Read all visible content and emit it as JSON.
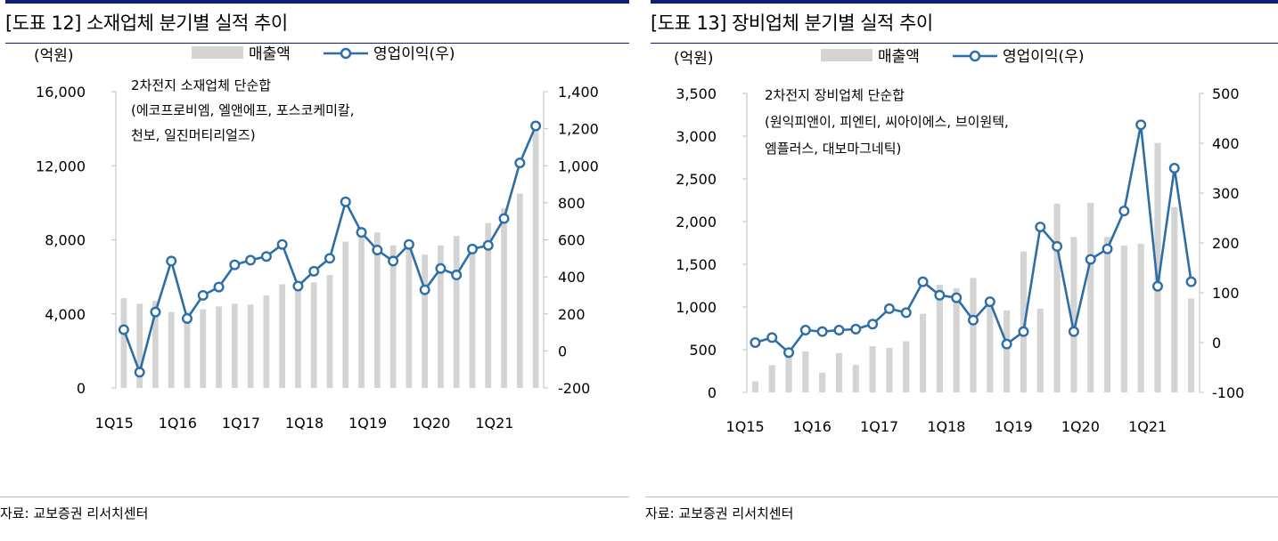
{
  "source_label": "자료: 교보증권 리서치센터",
  "colors": {
    "title_bar": "#0d1e73",
    "bar": "#d4d4d4",
    "line": "#2e6ea6",
    "marker_fill": "#ffffff"
  },
  "chart_data": [
    {
      "type": "bar+line",
      "title": "[도표 12] 소재업체 분기별 실적 추이",
      "unit_label": "(억원)",
      "note": [
        "2차전지 소재업체 단순합",
        "(에코프로비엠, 엘앤에프, 포스코케미칼,",
        "천보, 일진머티리얼즈)"
      ],
      "categories": [
        "1Q15",
        "2Q15",
        "3Q15",
        "4Q15",
        "1Q16",
        "2Q16",
        "3Q16",
        "4Q16",
        "1Q17",
        "2Q17",
        "3Q17",
        "4Q17",
        "1Q18",
        "2Q18",
        "3Q18",
        "4Q18",
        "1Q19",
        "2Q19",
        "3Q19",
        "4Q19",
        "1Q20",
        "2Q20",
        "3Q20",
        "4Q20",
        "1Q21",
        "2Q21",
        "3Q21"
      ],
      "x_tick_labels": [
        "1Q15",
        "1Q16",
        "1Q17",
        "1Q18",
        "1Q19",
        "1Q20",
        "1Q21"
      ],
      "y_left": {
        "ticks": [
          "16,000",
          "12,000",
          "8,000",
          "4,000",
          "0"
        ],
        "ylim": [
          0,
          16000
        ]
      },
      "y_right": {
        "ticks": [
          "1,400",
          "1,200",
          "1,000",
          "800",
          "600",
          "400",
          "200",
          "0",
          "-200"
        ],
        "ylim": [
          -200,
          1400
        ]
      },
      "series": [
        {
          "name": "매출액",
          "type": "bar",
          "axis": "left",
          "values": [
            4850,
            4550,
            4700,
            4100,
            4100,
            4250,
            4400,
            4550,
            4500,
            5000,
            5600,
            5400,
            5700,
            6100,
            7900,
            8300,
            8400,
            7700,
            7500,
            7200,
            7700,
            8200,
            7600,
            8900,
            9700,
            10500,
            14000
          ]
        },
        {
          "name": "영업이익(우)",
          "type": "line",
          "axis": "right",
          "values": [
            115,
            -115,
            210,
            485,
            175,
            300,
            345,
            465,
            490,
            510,
            575,
            350,
            430,
            500,
            805,
            640,
            545,
            485,
            575,
            330,
            445,
            410,
            550,
            570,
            715,
            1015,
            1215
          ]
        }
      ],
      "grid": false,
      "legend": "top"
    },
    {
      "type": "bar+line",
      "title": "[도표 13] 장비업체 분기별 실적 추이",
      "unit_label": "(억원)",
      "note": [
        "2차전지 장비업체 단순합",
        "(원익피앤이, 피엔티, 씨아이에스, 브이원텍,",
        "엠플러스, 대보마그네틱)"
      ],
      "categories": [
        "1Q15",
        "2Q15",
        "3Q15",
        "4Q15",
        "1Q16",
        "2Q16",
        "3Q16",
        "4Q16",
        "1Q17",
        "2Q17",
        "3Q17",
        "4Q17",
        "1Q18",
        "2Q18",
        "3Q18",
        "4Q18",
        "1Q19",
        "2Q19",
        "3Q19",
        "4Q19",
        "1Q20",
        "2Q20",
        "3Q20",
        "4Q20",
        "1Q21",
        "2Q21",
        "3Q21"
      ],
      "x_tick_labels": [
        "1Q15",
        "1Q16",
        "1Q17",
        "1Q18",
        "1Q19",
        "1Q20",
        "1Q21"
      ],
      "y_left": {
        "ticks": [
          "3,500",
          "3,000",
          "2,500",
          "2,000",
          "1,500",
          "1,000",
          "500",
          "0"
        ],
        "ylim": [
          0,
          3500
        ]
      },
      "y_right": {
        "ticks": [
          "500",
          "400",
          "300",
          "200",
          "100",
          "0",
          "-100"
        ],
        "ylim": [
          -100,
          500
        ]
      },
      "series": [
        {
          "name": "매출액",
          "type": "bar",
          "axis": "left",
          "values": [
            130,
            320,
            500,
            480,
            230,
            460,
            320,
            540,
            520,
            600,
            920,
            1260,
            1220,
            1340,
            1100,
            960,
            1650,
            980,
            2210,
            1820,
            2220,
            1820,
            1720,
            1740,
            2920,
            2170,
            1100
          ]
        },
        {
          "name": "영업이익(우)",
          "type": "line",
          "axis": "right",
          "values": [
            0,
            10,
            -20,
            25,
            22,
            25,
            27,
            37,
            68,
            60,
            122,
            95,
            90,
            45,
            82,
            -3,
            22,
            232,
            193,
            22,
            167,
            188,
            264,
            437,
            113,
            350,
            122
          ]
        }
      ],
      "grid": false,
      "legend": "top"
    }
  ]
}
